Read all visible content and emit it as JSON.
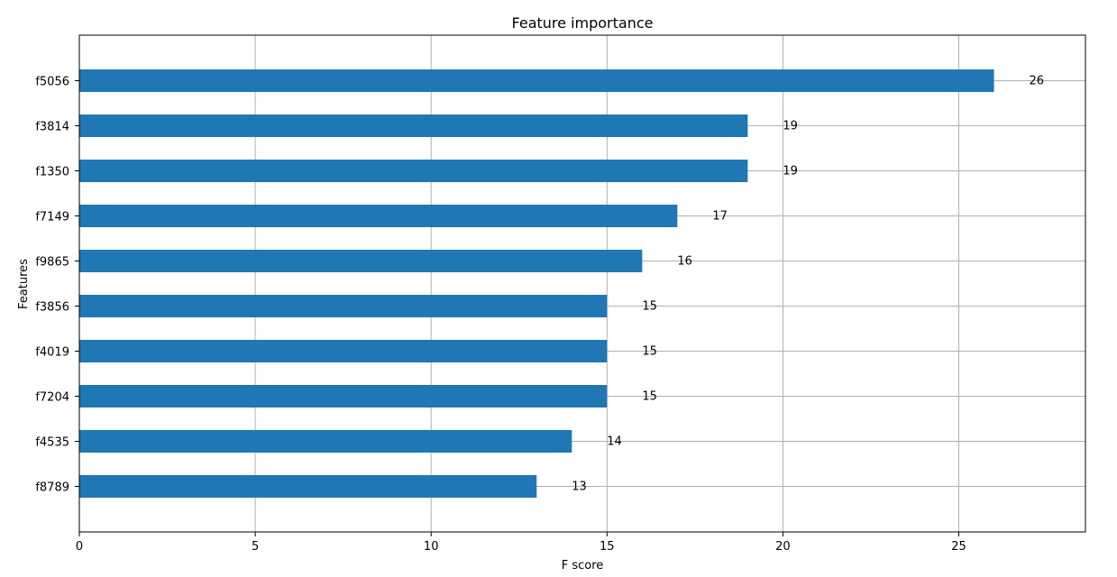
{
  "chart_data": {
    "type": "bar",
    "orientation": "horizontal",
    "title": "Feature importance",
    "xlabel": "F score",
    "ylabel": "Features",
    "categories": [
      "f5056",
      "f3814",
      "f1350",
      "f7149",
      "f9865",
      "f3856",
      "f4019",
      "f7204",
      "f4535",
      "f8789"
    ],
    "values": [
      26,
      19,
      19,
      17,
      16,
      15,
      15,
      15,
      14,
      13
    ],
    "xlim": [
      0,
      28.6
    ],
    "xticks": [
      0,
      5,
      10,
      15,
      20,
      25
    ],
    "grid": true,
    "colors": {
      "bar": "#1f77b4",
      "grid": "#b0b0b0",
      "axis": "#000000"
    }
  }
}
